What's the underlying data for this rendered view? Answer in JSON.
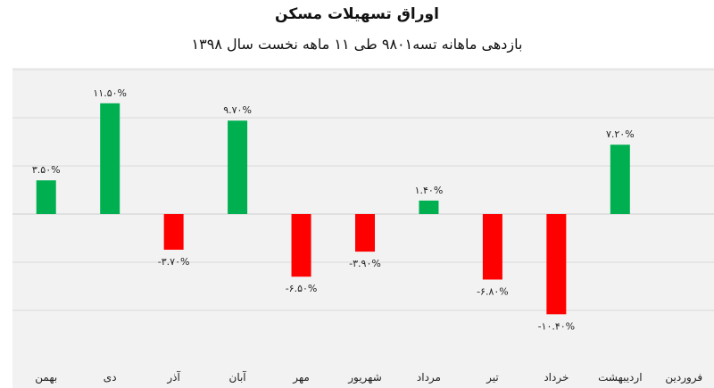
{
  "chart_data": {
    "type": "bar",
    "title": "اوراق تسهیلات مسکن",
    "subtitle": "بازدهی ماهانه تسه۹۸۰۱ طی ۱۱ ماهه نخست سال ۱۳۹۸",
    "xlabel": "",
    "ylabel": "",
    "ylim": [
      -15,
      20
    ],
    "grid": true,
    "legend": "none",
    "categories": [
      "فروردین",
      "اردیبهشت",
      "خرداد",
      "تیر",
      "مرداد",
      "شهریور",
      "مهر",
      "آبان",
      "آذر",
      "دی",
      "بهمن"
    ],
    "values": [
      null,
      7.2,
      -10.4,
      -6.8,
      1.4,
      -3.9,
      -6.5,
      9.7,
      -3.7,
      11.5,
      3.5
    ],
    "data_labels": [
      "",
      "۷.۲۰%",
      "-۱۰.۴۰%",
      "-۶.۸۰%",
      "۱.۴۰%",
      "-۳.۹۰%",
      "-۶.۵۰%",
      "۹.۷۰%",
      "-۳.۷۰%",
      "۱۱.۵۰%",
      "۳.۵۰%"
    ],
    "colors": {
      "positive": "#00b050",
      "negative": "#ff0000",
      "grid": "#d9d9d9",
      "background": "#f2f2f2"
    }
  }
}
